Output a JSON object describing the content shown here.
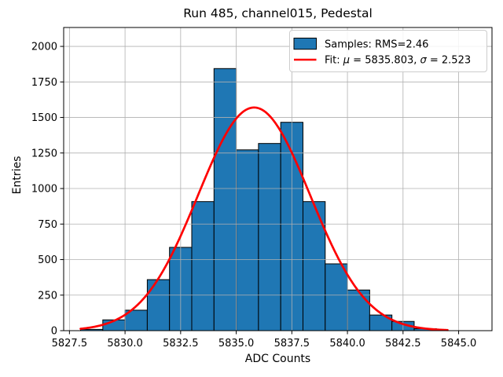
{
  "chart_data": {
    "type": "bar",
    "subtype": "histogram-with-gaussian-fit",
    "title": "Run 485, channel015, Pedestal",
    "xlabel": "ADC Counts",
    "ylabel": "Entries",
    "xlim": [
      5827.24,
      5846.5
    ],
    "ylim": [
      0,
      2133
    ],
    "grid": true,
    "x_ticks": [
      5827.5,
      5830.0,
      5832.5,
      5835.0,
      5837.5,
      5840.0,
      5842.5,
      5845.0
    ],
    "x_tick_labels": [
      "5827.5",
      "5830.0",
      "5832.5",
      "5835.0",
      "5837.5",
      "5840.0",
      "5842.5",
      "5845.0"
    ],
    "y_ticks": [
      0,
      250,
      500,
      750,
      1000,
      1250,
      1500,
      1750,
      2000
    ],
    "y_tick_labels": [
      "0",
      "250",
      "500",
      "750",
      "1000",
      "1250",
      "1500",
      "1750",
      "2000"
    ],
    "histogram": {
      "bin_edges": [
        5828,
        5829,
        5830,
        5831,
        5832,
        5833,
        5834,
        5835,
        5836,
        5837,
        5838,
        5839,
        5840,
        5841,
        5842,
        5843,
        5844
      ],
      "counts": [
        9,
        76,
        144,
        359,
        586,
        908,
        1844,
        1272,
        1317,
        1466,
        908,
        470,
        286,
        110,
        65,
        14
      ],
      "rms": 2.46
    },
    "fit": {
      "mu": 5835.803,
      "sigma": 2.523,
      "amplitude": 1570,
      "x_range": [
        5828.0,
        5844.5
      ]
    },
    "legend": {
      "position": "upper right",
      "entries": [
        {
          "handle": "patch",
          "color": "#1f77b4",
          "label": "Samples: RMS=2.46",
          "parts": [
            [
              "Samples: RMS=2.46",
              false
            ]
          ]
        },
        {
          "handle": "line",
          "color": "#ff0000",
          "label": "Fit: μ = 5835.803, σ = 2.523",
          "parts": [
            [
              "Fit: ",
              false
            ],
            [
              "μ",
              true
            ],
            [
              " = 5835.803, ",
              false
            ],
            [
              "σ",
              true
            ],
            [
              " = 2.523",
              false
            ]
          ]
        }
      ]
    },
    "colors": {
      "bar_fill": "#1f77b4",
      "bar_edge": "#000000",
      "fit_line": "#ff0000",
      "grid": "#b0b0b0",
      "spine": "#000000",
      "legend_edge": "#cccccc",
      "background": "#ffffff"
    }
  }
}
